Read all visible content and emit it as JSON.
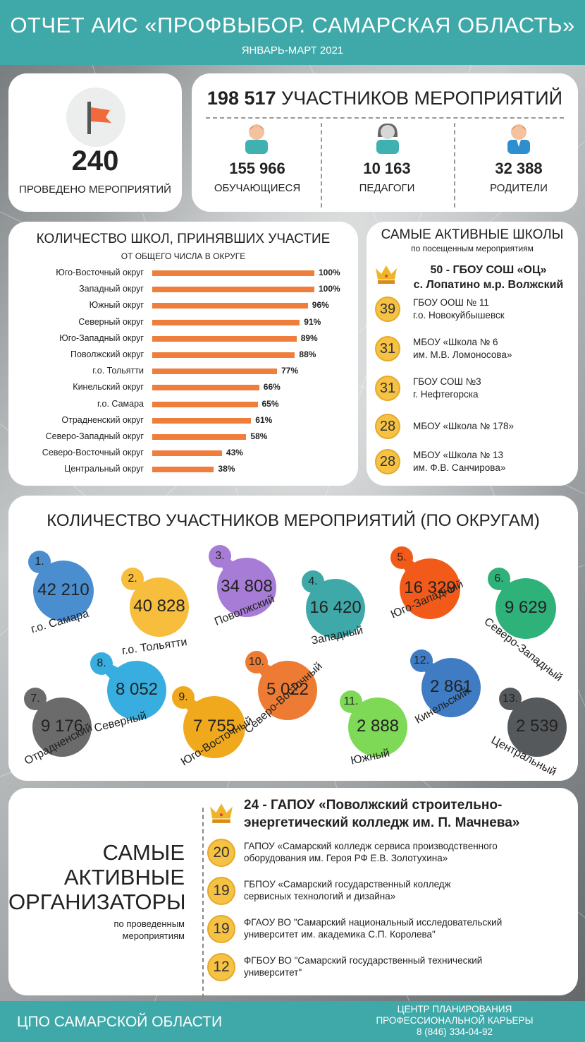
{
  "header": {
    "title": "ОТЧЕТ АИС «ПРОФВЫБОР. САМАРСКАЯ ОБЛАСТЬ»",
    "subtitle": "ЯНВАРЬ-МАРТ 2021"
  },
  "events": {
    "count": "240",
    "label": "ПРОВЕДЕНО МЕРОПРИЯТИЙ",
    "flag_color": "#f26a3b"
  },
  "participants": {
    "total": "198 517",
    "total_label": "УЧАСТНИКОВ МЕРОПРИЯТИЙ",
    "groups": [
      {
        "value": "155 966",
        "label": "ОБУЧАЮЩИЕСЯ",
        "icon": "student-icon"
      },
      {
        "value": "10 163",
        "label": "ПЕДАГОГИ",
        "icon": "teacher-icon"
      },
      {
        "value": "32 388",
        "label": "РОДИТЕЛИ",
        "icon": "parent-icon"
      }
    ]
  },
  "schools_chart": {
    "title": "КОЛИЧЕСТВО ШКОЛ, ПРИНЯВШИХ УЧАСТИЕ",
    "subtitle": "ОТ ОБЩЕГО ЧИСЛА В ОКРУГЕ",
    "bar_color": "#ef7d3c"
  },
  "chart_data": {
    "type": "bar",
    "orientation": "horizontal",
    "categories": [
      "Юго-Восточный округ",
      "Западный округ",
      "Южный округ",
      "Северный округ",
      "Юго-Западный округ",
      "Поволжский округ",
      "г.о. Тольятти",
      "Кинельский округ",
      "г.о. Самара",
      "Отрадненский округ",
      "Северо-Западный округ",
      "Северо-Восточный округ",
      "Центральный округ"
    ],
    "values": [
      100,
      100,
      96,
      91,
      89,
      88,
      77,
      66,
      65,
      61,
      58,
      43,
      38
    ],
    "value_labels": [
      "100%",
      "100%",
      "96%",
      "91%",
      "89%",
      "88%",
      "77%",
      "66%",
      "65%",
      "61%",
      "58%",
      "43%",
      "38%"
    ],
    "xlim": [
      0,
      100
    ]
  },
  "active_schools": {
    "title": "САМЫЕ АКТИВНЫЕ ШКОЛЫ",
    "subtitle": "по посещенным мероприятиям",
    "top": {
      "line1": "50 -  ГБОУ СОШ «ОЦ»",
      "line2": "с. Лопатино м.р. Волжский"
    },
    "items": [
      {
        "num": "39",
        "line1": "ГБОУ ООШ № 11",
        "line2": "г.о. Новокуйбышевск"
      },
      {
        "num": "31",
        "line1": "МБОУ «Школа № 6",
        "line2": "им. М.В. Ломоносова»"
      },
      {
        "num": "31",
        "line1": "ГБОУ СОШ №3",
        "line2": "г. Нефтегорска"
      },
      {
        "num": "28",
        "line1": "МБОУ «Школа № 178»",
        "line2": ""
      },
      {
        "num": "28",
        "line1": "МБОУ «Школа № 13",
        "line2": "им. Ф.В. Санчирова»"
      }
    ]
  },
  "districts": {
    "title": "КОЛИЧЕСТВО УЧАСТНИКОВ МЕРОПРИЯТИЙ (ПО ОКРУГАМ)",
    "items": [
      {
        "rank": "1.",
        "value": "42 210",
        "name": "г.о. Самара",
        "color": "#4a8ed0"
      },
      {
        "rank": "2.",
        "value": "40 828",
        "name": "г.о. Тольятти",
        "color": "#f6be3c"
      },
      {
        "rank": "3.",
        "value": "34 808",
        "name": "Поволжский",
        "color": "#a77cd6"
      },
      {
        "rank": "4.",
        "value": "16 420",
        "name": "Западный",
        "color": "#3fa8a8"
      },
      {
        "rank": "5.",
        "value": "16 329",
        "name": "Юго-Западный",
        "color": "#f25a1a"
      },
      {
        "rank": "6.",
        "value": "9 629",
        "name": "Северо-Западный",
        "color": "#2fb17a"
      },
      {
        "rank": "7.",
        "value": "9 176",
        "name": "Отрадненский",
        "color": "#6b6b6b"
      },
      {
        "rank": "8.",
        "value": "8 052",
        "name": "Северный",
        "color": "#38aee0"
      },
      {
        "rank": "9.",
        "value": "7 755",
        "name": "Юго-Восточный",
        "color": "#f0a81c"
      },
      {
        "rank": "10.",
        "value": "5 022",
        "name": "Северо-Восточный",
        "color": "#ee7b33"
      },
      {
        "rank": "11.",
        "value": "2 888",
        "name": "Южный",
        "color": "#7ed957"
      },
      {
        "rank": "12.",
        "value": "2 861",
        "name": "Кинельский",
        "color": "#3f7cc4"
      },
      {
        "rank": "13.",
        "value": "2 539",
        "name": "Центральный",
        "color": "#55595c"
      }
    ]
  },
  "organizers": {
    "title_lines": [
      "САМЫЕ",
      "АКТИВНЫЕ",
      "ОРГАНИЗАТОРЫ"
    ],
    "subtitle_lines": [
      "по проведенным",
      "мероприятиям"
    ],
    "top": {
      "line1": "24 - ГАПОУ «Поволжский строительно-",
      "line2": "энергетический колледж им. П. Мачнева»"
    },
    "items": [
      {
        "num": "20",
        "line1": "ГАПОУ «Самарский колледж сервиса производственного",
        "line2": "оборудования им. Героя РФ Е.В. Золотухина»"
      },
      {
        "num": "19",
        "line1": "ГБПОУ   «Самарский   государственный   колледж",
        "line2": "сервисных технологий и дизайна»"
      },
      {
        "num": "19",
        "line1": "ФГАОУ ВО \"Самарский национальный исследовательский",
        "line2": "университет им. академика С.П. Королева\""
      },
      {
        "num": "12",
        "line1": "ФГБОУ ВО \"Самарский государственный технический",
        "line2": "университет\""
      }
    ]
  },
  "footer": {
    "left": "ЦПО САМАРСКОЙ ОБЛАСТИ",
    "right_line1": "ЦЕНТР ПЛАНИРОВАНИЯ",
    "right_line2": "ПРОФЕССИОНАЛЬНОЙ КАРЬЕРЫ",
    "phone": "8 (846) 334-04-92"
  },
  "colors": {
    "accent": "#3fa8a8",
    "gold": "#f6c244"
  }
}
